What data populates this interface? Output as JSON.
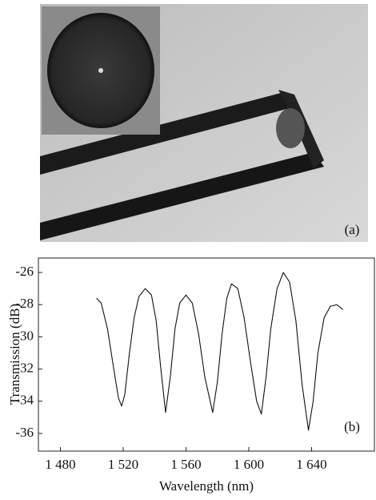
{
  "panel_a_label": "(a)",
  "chart_data": {
    "type": "line",
    "panel_label": "(b)",
    "x_label": "Wavelength (nm)",
    "y_label": "Transmission (dB)",
    "xlim": [
      1466,
      1680
    ],
    "ylim": [
      -37.1,
      -25.1
    ],
    "xticks": [
      {
        "value": 1480,
        "label": "1 480"
      },
      {
        "value": 1520,
        "label": "1 520"
      },
      {
        "value": 1560,
        "label": "1 560"
      },
      {
        "value": 1600,
        "label": "1 600"
      },
      {
        "value": 1640,
        "label": "1 640"
      }
    ],
    "yticks": [
      -36,
      -34,
      -32,
      -30,
      -28,
      -26
    ],
    "series": [
      {
        "color": "#111111",
        "x": [
          1503,
          1506,
          1510,
          1514,
          1517,
          1519,
          1521,
          1524,
          1527,
          1530,
          1534,
          1538,
          1541,
          1544,
          1547,
          1550,
          1553,
          1556,
          1560,
          1564,
          1568,
          1572,
          1577,
          1580,
          1583,
          1586,
          1589,
          1593,
          1597,
          1601,
          1605,
          1608,
          1611,
          1614,
          1618,
          1622,
          1626,
          1630,
          1634,
          1638,
          1641,
          1644,
          1648,
          1652,
          1656,
          1660
        ],
        "values": [
          -27.6,
          -27.9,
          -29.5,
          -32.0,
          -33.8,
          -34.3,
          -33.6,
          -31.0,
          -28.8,
          -27.5,
          -27.0,
          -27.4,
          -29.0,
          -32.0,
          -34.7,
          -32.5,
          -29.5,
          -27.9,
          -27.4,
          -27.9,
          -29.8,
          -32.5,
          -34.7,
          -32.8,
          -29.8,
          -27.6,
          -26.7,
          -27.0,
          -28.8,
          -31.5,
          -34.0,
          -34.8,
          -32.5,
          -29.5,
          -27.0,
          -26.0,
          -26.6,
          -29.0,
          -33.0,
          -35.8,
          -34.0,
          -31.0,
          -28.8,
          -28.1,
          -28.0,
          -28.3
        ]
      }
    ]
  }
}
